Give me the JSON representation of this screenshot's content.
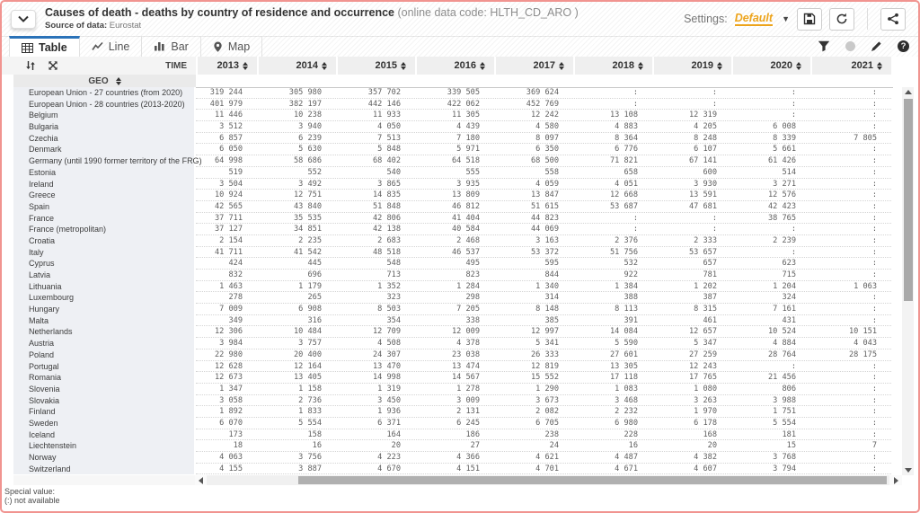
{
  "header": {
    "title": "Causes of death - deaths by country of residence and occurrence",
    "data_code": "(online data code: HLTH_CD_ARO )",
    "source_label": "Source of data:",
    "source_value": "Eurostat",
    "settings_label": "Settings:",
    "settings_value": "Default"
  },
  "tabs": [
    {
      "label": "Table"
    },
    {
      "label": "Line"
    },
    {
      "label": "Bar"
    },
    {
      "label": "Map"
    }
  ],
  "table": {
    "time_label": "TIME",
    "geo_label": "GEO",
    "years": [
      "2013",
      "2014",
      "2015",
      "2016",
      "2017",
      "2018",
      "2019",
      "2020",
      "2021"
    ],
    "missing_symbol": ":",
    "rows": [
      {
        "geo": "European Union - 27 countries (from 2020)",
        "values": [
          "319 244",
          "305 980",
          "357 702",
          "339 505",
          "369 624",
          ":",
          ":",
          ":",
          ":"
        ]
      },
      {
        "geo": "European Union - 28 countries (2013-2020)",
        "values": [
          "401 979",
          "382 197",
          "442 146",
          "422 062",
          "452 769",
          ":",
          ":",
          ":",
          ":"
        ]
      },
      {
        "geo": "Belgium",
        "values": [
          "11 446",
          "10 238",
          "11 933",
          "11 305",
          "12 242",
          "13 108",
          "12 319",
          ":",
          ":"
        ]
      },
      {
        "geo": "Bulgaria",
        "values": [
          "3 512",
          "3 940",
          "4 050",
          "4 439",
          "4 580",
          "4 883",
          "4 205",
          "6 008",
          ":"
        ]
      },
      {
        "geo": "Czechia",
        "values": [
          "6 857",
          "6 239",
          "7 513",
          "7 180",
          "8 097",
          "8 364",
          "8 248",
          "8 339",
          "7 805"
        ]
      },
      {
        "geo": "Denmark",
        "values": [
          "6 050",
          "5 630",
          "5 848",
          "5 971",
          "6 350",
          "6 776",
          "6 107",
          "5 661",
          ":"
        ]
      },
      {
        "geo": "Germany (until 1990 former territory of the FRG)",
        "values": [
          "64 998",
          "58 686",
          "68 402",
          "64 518",
          "68 500",
          "71 821",
          "67 141",
          "61 426",
          ":"
        ]
      },
      {
        "geo": "Estonia",
        "values": [
          "519",
          "552",
          "540",
          "555",
          "558",
          "658",
          "600",
          "514",
          ":"
        ]
      },
      {
        "geo": "Ireland",
        "values": [
          "3 504",
          "3 492",
          "3 865",
          "3 935",
          "4 059",
          "4 051",
          "3 930",
          "3 271",
          ":"
        ]
      },
      {
        "geo": "Greece",
        "values": [
          "10 924",
          "12 751",
          "14 835",
          "13 809",
          "13 847",
          "12 668",
          "13 591",
          "12 576",
          ":"
        ]
      },
      {
        "geo": "Spain",
        "values": [
          "42 565",
          "43 840",
          "51 848",
          "46 812",
          "51 615",
          "53 687",
          "47 681",
          "42 423",
          ":"
        ]
      },
      {
        "geo": "France",
        "values": [
          "37 711",
          "35 535",
          "42 806",
          "41 404",
          "44 823",
          ":",
          ":",
          "38 765",
          ":"
        ]
      },
      {
        "geo": "France (metropolitan)",
        "values": [
          "37 127",
          "34 851",
          "42 138",
          "40 584",
          "44 069",
          ":",
          ":",
          ":",
          ":"
        ]
      },
      {
        "geo": "Croatia",
        "values": [
          "2 154",
          "2 235",
          "2 683",
          "2 468",
          "3 163",
          "2 376",
          "2 333",
          "2 239",
          ":"
        ]
      },
      {
        "geo": "Italy",
        "values": [
          "41 711",
          "41 542",
          "48 518",
          "46 537",
          "53 372",
          "51 756",
          "53 657",
          ":",
          ":"
        ]
      },
      {
        "geo": "Cyprus",
        "values": [
          "424",
          "445",
          "548",
          "495",
          "595",
          "532",
          "657",
          "623",
          ":"
        ]
      },
      {
        "geo": "Latvia",
        "values": [
          "832",
          "696",
          "713",
          "823",
          "844",
          "922",
          "781",
          "715",
          ":"
        ]
      },
      {
        "geo": "Lithuania",
        "values": [
          "1 463",
          "1 179",
          "1 352",
          "1 284",
          "1 340",
          "1 384",
          "1 202",
          "1 204",
          "1 063"
        ]
      },
      {
        "geo": "Luxembourg",
        "values": [
          "278",
          "265",
          "323",
          "298",
          "314",
          "388",
          "387",
          "324",
          ":"
        ]
      },
      {
        "geo": "Hungary",
        "values": [
          "7 009",
          "6 908",
          "8 503",
          "7 205",
          "8 148",
          "8 113",
          "8 315",
          "7 161",
          ":"
        ]
      },
      {
        "geo": "Malta",
        "values": [
          "349",
          "316",
          "354",
          "338",
          "385",
          "391",
          "461",
          "431",
          ":"
        ]
      },
      {
        "geo": "Netherlands",
        "values": [
          "12 306",
          "10 484",
          "12 709",
          "12 009",
          "12 997",
          "14 084",
          "12 657",
          "10 524",
          "10 151"
        ]
      },
      {
        "geo": "Austria",
        "values": [
          "3 984",
          "3 757",
          "4 508",
          "4 378",
          "5 341",
          "5 590",
          "5 347",
          "4 884",
          "4 043"
        ]
      },
      {
        "geo": "Poland",
        "values": [
          "22 980",
          "20 400",
          "24 307",
          "23 038",
          "26 333",
          "27 601",
          "27 259",
          "28 764",
          "28 175"
        ]
      },
      {
        "geo": "Portugal",
        "values": [
          "12 628",
          "12 164",
          "13 470",
          "13 474",
          "12 819",
          "13 305",
          "12 243",
          ":",
          ":"
        ]
      },
      {
        "geo": "Romania",
        "values": [
          "12 673",
          "13 405",
          "14 998",
          "14 567",
          "15 552",
          "17 118",
          "17 765",
          "21 456",
          ":"
        ]
      },
      {
        "geo": "Slovenia",
        "values": [
          "1 347",
          "1 158",
          "1 319",
          "1 278",
          "1 290",
          "1 083",
          "1 080",
          "806",
          ":"
        ]
      },
      {
        "geo": "Slovakia",
        "values": [
          "3 058",
          "2 736",
          "3 450",
          "3 009",
          "3 673",
          "3 468",
          "3 263",
          "3 988",
          ":"
        ]
      },
      {
        "geo": "Finland",
        "values": [
          "1 892",
          "1 833",
          "1 936",
          "2 131",
          "2 082",
          "2 232",
          "1 970",
          "1 751",
          ":"
        ]
      },
      {
        "geo": "Sweden",
        "values": [
          "6 070",
          "5 554",
          "6 371",
          "6 245",
          "6 705",
          "6 980",
          "6 178",
          "5 554",
          ":"
        ]
      },
      {
        "geo": "Iceland",
        "values": [
          "173",
          "158",
          "164",
          "186",
          "238",
          "228",
          "168",
          "181",
          ":"
        ]
      },
      {
        "geo": "Liechtenstein",
        "values": [
          "18",
          "16",
          "20",
          "27",
          "24",
          "16",
          "20",
          "15",
          "7"
        ]
      },
      {
        "geo": "Norway",
        "values": [
          "4 063",
          "3 756",
          "4 223",
          "4 366",
          "4 621",
          "4 487",
          "4 382",
          "3 768",
          ":"
        ]
      },
      {
        "geo": "Switzerland",
        "values": [
          "4 155",
          "3 887",
          "4 670",
          "4 151",
          "4 701",
          "4 671",
          "4 607",
          "3 794",
          ":"
        ]
      }
    ]
  },
  "footer": {
    "special_value_label": "Special value:",
    "special_value_note": "(:) not available"
  },
  "colors": {
    "accent_blue": "#2a72b8",
    "accent_orange": "#eda41c",
    "page_border_red": "#f19490"
  }
}
